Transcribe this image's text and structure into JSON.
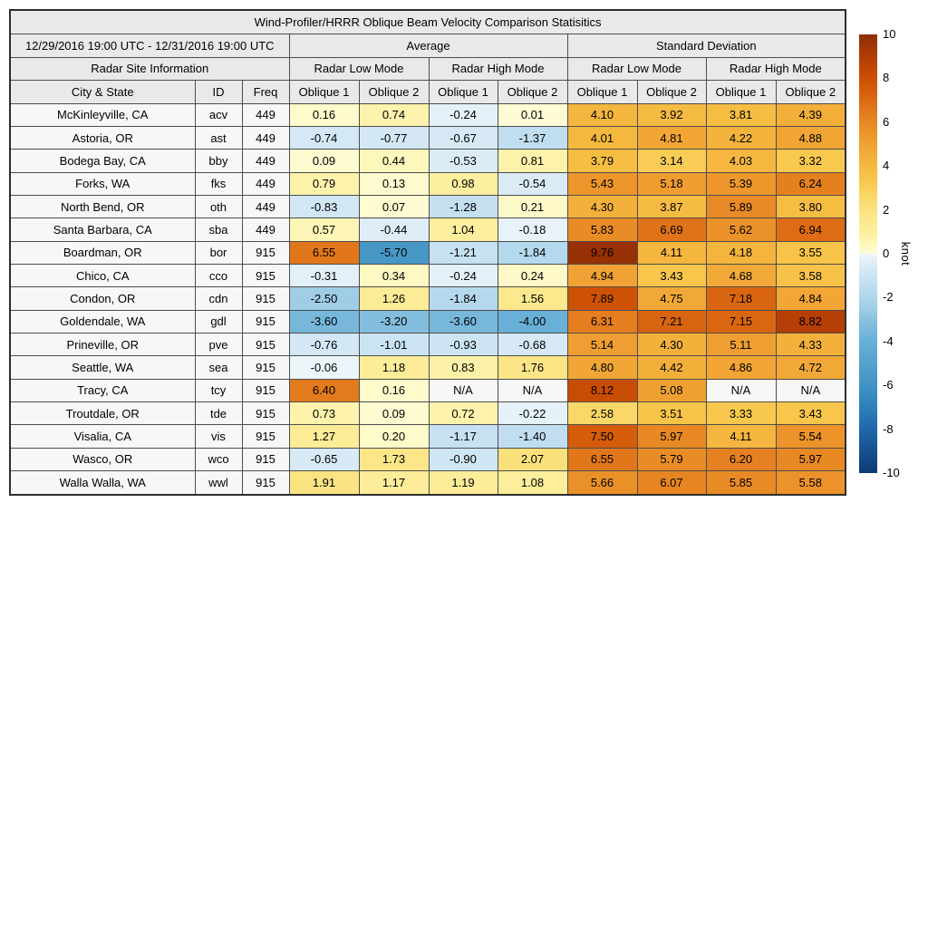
{
  "title": "Wind-Profiler/HRRR Oblique Beam Velocity Comparison Statisitics",
  "header": {
    "date_range": "12/29/2016 19:00 UTC - 12/31/2016 19:00 UTC",
    "groups": [
      "Average",
      "Standard Deviation"
    ],
    "site_info_label": "Radar Site Information",
    "mode_headers": [
      "Radar Low Mode",
      "Radar High Mode",
      "Radar Low Mode",
      "Radar High Mode"
    ],
    "columns": [
      "City & State",
      "ID",
      "Freq",
      "Oblique 1",
      "Oblique 2",
      "Oblique 1",
      "Oblique 2",
      "Oblique 1",
      "Oblique 2",
      "Oblique 1",
      "Oblique 2"
    ]
  },
  "chart_data": {
    "type": "heatmap",
    "title": "Wind-Profiler/HRRR Oblique Beam Velocity Comparison Statisitics",
    "value_column_keys": [
      "avg_low_oblique1",
      "avg_low_oblique2",
      "avg_high_oblique1",
      "avg_high_oblique2",
      "sd_low_oblique1",
      "sd_low_oblique2",
      "sd_high_oblique1",
      "sd_high_oblique2"
    ],
    "na_text": "N/A",
    "rows": [
      {
        "city": "McKinleyville, CA",
        "id": "acv",
        "freq": "449",
        "values": [
          "0.16",
          "0.74",
          "-0.24",
          "0.01",
          "4.10",
          "3.92",
          "3.81",
          "4.39"
        ]
      },
      {
        "city": "Astoria, OR",
        "id": "ast",
        "freq": "449",
        "values": [
          "-0.74",
          "-0.77",
          "-0.67",
          "-1.37",
          "4.01",
          "4.81",
          "4.22",
          "4.88"
        ]
      },
      {
        "city": "Bodega Bay, CA",
        "id": "bby",
        "freq": "449",
        "values": [
          "0.09",
          "0.44",
          "-0.53",
          "0.81",
          "3.79",
          "3.14",
          "4.03",
          "3.32"
        ]
      },
      {
        "city": "Forks, WA",
        "id": "fks",
        "freq": "449",
        "values": [
          "0.79",
          "0.13",
          "0.98",
          "-0.54",
          "5.43",
          "5.18",
          "5.39",
          "6.24"
        ]
      },
      {
        "city": "North Bend, OR",
        "id": "oth",
        "freq": "449",
        "values": [
          "-0.83",
          "0.07",
          "-1.28",
          "0.21",
          "4.30",
          "3.87",
          "5.89",
          "3.80"
        ]
      },
      {
        "city": "Santa Barbara, CA",
        "id": "sba",
        "freq": "449",
        "values": [
          "0.57",
          "-0.44",
          "1.04",
          "-0.18",
          "5.83",
          "6.69",
          "5.62",
          "6.94"
        ]
      },
      {
        "city": "Boardman, OR",
        "id": "bor",
        "freq": "915",
        "values": [
          "6.55",
          "-5.70",
          "-1.21",
          "-1.84",
          "9.76",
          "4.11",
          "4.18",
          "3.55"
        ]
      },
      {
        "city": "Chico, CA",
        "id": "cco",
        "freq": "915",
        "values": [
          "-0.31",
          "0.34",
          "-0.24",
          "0.24",
          "4.94",
          "3.43",
          "4.68",
          "3.58"
        ]
      },
      {
        "city": "Condon, OR",
        "id": "cdn",
        "freq": "915",
        "values": [
          "-2.50",
          "1.26",
          "-1.84",
          "1.56",
          "7.89",
          "4.75",
          "7.18",
          "4.84"
        ]
      },
      {
        "city": "Goldendale, WA",
        "id": "gdl",
        "freq": "915",
        "values": [
          "-3.60",
          "-3.20",
          "-3.60",
          "-4.00",
          "6.31",
          "7.21",
          "7.15",
          "8.82"
        ]
      },
      {
        "city": "Prineville, OR",
        "id": "pve",
        "freq": "915",
        "values": [
          "-0.76",
          "-1.01",
          "-0.93",
          "-0.68",
          "5.14",
          "4.30",
          "5.11",
          "4.33"
        ]
      },
      {
        "city": "Seattle, WA",
        "id": "sea",
        "freq": "915",
        "values": [
          "-0.06",
          "1.18",
          "0.83",
          "1.76",
          "4.80",
          "4.42",
          "4.86",
          "4.72"
        ]
      },
      {
        "city": "Tracy, CA",
        "id": "tcy",
        "freq": "915",
        "values": [
          "6.40",
          "0.16",
          "N/A",
          "N/A",
          "8.12",
          "5.08",
          "N/A",
          "N/A"
        ]
      },
      {
        "city": "Troutdale, OR",
        "id": "tde",
        "freq": "915",
        "values": [
          "0.73",
          "0.09",
          "0.72",
          "-0.22",
          "2.58",
          "3.51",
          "3.33",
          "3.43"
        ]
      },
      {
        "city": "Visalia, CA",
        "id": "vis",
        "freq": "915",
        "values": [
          "1.27",
          "0.20",
          "-1.17",
          "-1.40",
          "7.50",
          "5.97",
          "4.11",
          "5.54"
        ]
      },
      {
        "city": "Wasco, OR",
        "id": "wco",
        "freq": "915",
        "values": [
          "-0.65",
          "1.73",
          "-0.90",
          "2.07",
          "6.55",
          "5.79",
          "6.20",
          "5.97"
        ]
      },
      {
        "city": "Walla Walla, WA",
        "id": "wwl",
        "freq": "915",
        "values": [
          "1.91",
          "1.17",
          "1.19",
          "1.08",
          "5.66",
          "6.07",
          "5.85",
          "5.58"
        ]
      }
    ],
    "colorbar": {
      "label": "knot",
      "vmin": -10,
      "vmax": 10,
      "ticks": [
        "10",
        "8",
        "6",
        "4",
        "2",
        "0",
        "-2",
        "-4",
        "-6",
        "-8",
        "-10"
      ]
    }
  },
  "colors": {
    "header_bg": "#e9e9e9",
    "row_label_bg": "#f7f7f7",
    "na_bg": "#f7f7f7",
    "border": "#4d4d4d",
    "positive_scale": [
      [
        0,
        "#fffcd6"
      ],
      [
        0.5,
        "#fdf6b8"
      ],
      [
        1,
        "#fdef9f"
      ],
      [
        1.5,
        "#fce98f"
      ],
      [
        2,
        "#fbe27f"
      ],
      [
        2.5,
        "#fad96b"
      ],
      [
        3,
        "#f9cf59"
      ],
      [
        3.5,
        "#f7c449"
      ],
      [
        4,
        "#f5b83f"
      ],
      [
        4.5,
        "#f2ad39"
      ],
      [
        5,
        "#f0a233"
      ],
      [
        5.5,
        "#ec942b"
      ],
      [
        6,
        "#e78723"
      ],
      [
        6.5,
        "#e2781b"
      ],
      [
        7,
        "#dc6a13"
      ],
      [
        7.5,
        "#d45c0b"
      ],
      [
        8,
        "#cb4f04"
      ],
      [
        8.5,
        "#be4504"
      ],
      [
        9,
        "#b03c05"
      ],
      [
        9.5,
        "#a03505"
      ],
      [
        10,
        "#8e2e05"
      ]
    ],
    "negative_scale": [
      [
        0,
        "#eef6fb"
      ],
      [
        0.5,
        "#dcecf6"
      ],
      [
        1,
        "#cbe4f3"
      ],
      [
        1.5,
        "#bedcef"
      ],
      [
        2,
        "#b0d7ec"
      ],
      [
        2.5,
        "#9fcde6"
      ],
      [
        3,
        "#8bc2e0"
      ],
      [
        3.5,
        "#79b9db"
      ],
      [
        4,
        "#68b0d7"
      ],
      [
        4.5,
        "#5ea9d2"
      ],
      [
        5,
        "#55a2cd"
      ],
      [
        5.5,
        "#4b9ac8"
      ],
      [
        6,
        "#4293c4"
      ],
      [
        7,
        "#2e7fb8"
      ],
      [
        8,
        "#2067ab"
      ],
      [
        9,
        "#15508f"
      ],
      [
        10,
        "#0d3a74"
      ]
    ]
  }
}
